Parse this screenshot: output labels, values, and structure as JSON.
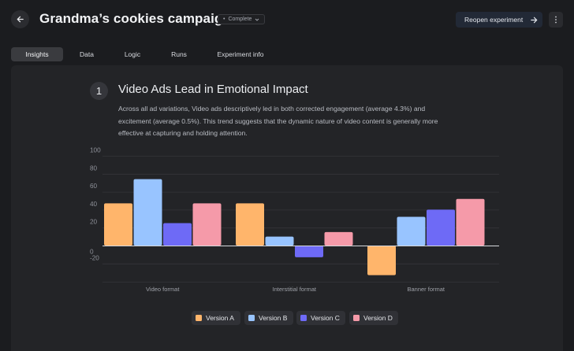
{
  "header": {
    "title": "Grandma’s cookies campaign",
    "status": "Complete",
    "reopen_label": "Reopen experiment"
  },
  "tabs": [
    {
      "label": "Insights",
      "active": true
    },
    {
      "label": "Data",
      "active": false
    },
    {
      "label": "Logic",
      "active": false
    },
    {
      "label": "Runs",
      "active": false
    },
    {
      "label": "Experiment info",
      "active": false
    }
  ],
  "insight": {
    "number": "1",
    "title": "Video Ads Lead in Emotional Impact",
    "body": "Across all ad variations, Video ads descriptively led in both corrected engagement (average 4.3%) and excitement (average 0.5%). This trend suggests that the dynamic nature of video content is generally more effective at capturing and holding attention."
  },
  "chart_data": {
    "type": "bar",
    "categories": [
      "Video format",
      "Interstitial format",
      "Banner format"
    ],
    "series": [
      {
        "name": "Version A",
        "color": "#ffb56b",
        "values": [
          47,
          47,
          -33
        ]
      },
      {
        "name": "Version B",
        "color": "#98c4ff",
        "values": [
          74,
          10,
          32
        ]
      },
      {
        "name": "Version C",
        "color": "#6e6af6",
        "values": [
          25,
          -13,
          40
        ]
      },
      {
        "name": "Version D",
        "color": "#f59aa9",
        "values": [
          47,
          15,
          52
        ]
      }
    ],
    "yticks": [
      100,
      80,
      60,
      40,
      20,
      0,
      -20
    ],
    "ylim": [
      -40,
      100
    ],
    "grid": true,
    "legend": "bottom-center"
  },
  "icons": {
    "back": "arrow-left-icon",
    "reopen": "arrow-right-icon",
    "more": "vertical-dots-icon",
    "status": "chevron-down-icon"
  }
}
